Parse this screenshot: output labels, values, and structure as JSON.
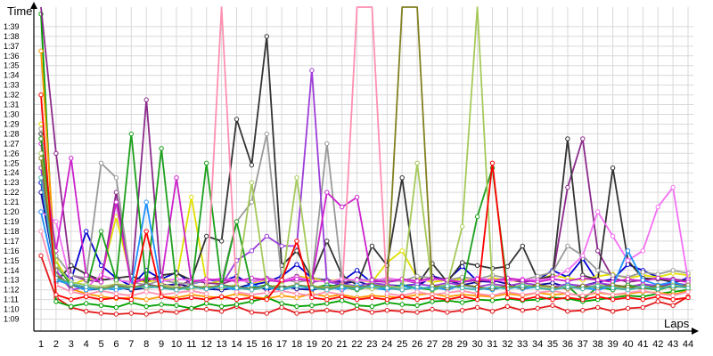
{
  "chart_data": {
    "type": "line",
    "ylabel": "Time",
    "xlabel": "Laps",
    "x_ticks": [
      "1",
      "2",
      "3",
      "4",
      "5",
      "6",
      "7",
      "8",
      "9",
      "10",
      "11",
      "12",
      "13",
      "14",
      "15",
      "16",
      "17",
      "18",
      "19",
      "20",
      "21",
      "22",
      "23",
      "24",
      "25",
      "26",
      "27",
      "28",
      "29",
      "30",
      "31",
      "32",
      "33",
      "34",
      "35",
      "36",
      "37",
      "38",
      "39",
      "40",
      "41",
      "42",
      "43",
      "44"
    ],
    "y_ticks": [
      "1:09",
      "1:10",
      "1:11",
      "1:12",
      "1:13",
      "1:14",
      "1:15",
      "1:16",
      "1:17",
      "1:18",
      "1:19",
      "1:20",
      "1:21",
      "1:22",
      "1:23",
      "1:24",
      "1:25",
      "1:26",
      "1:27",
      "1:28",
      "1:29",
      "1:30",
      "1:31",
      "1:32",
      "1:33",
      "1:34",
      "1:35",
      "1:36",
      "1:37",
      "1:38",
      "1:39"
    ],
    "ylim": [
      68.5,
      101
    ],
    "xlim": [
      1,
      44
    ],
    "grid": true,
    "series": [
      {
        "color": "#e31a1c",
        "values": [
          75.5,
          71.2,
          70.2,
          69.8,
          69.6,
          69.5,
          69.6,
          69.5,
          69.8,
          69.7,
          70.1,
          70.0,
          69.8,
          70.3,
          69.7,
          69.6,
          70.2,
          69.6,
          69.8,
          69.9,
          69.7,
          70.1,
          69.7,
          69.9,
          69.8,
          69.7,
          70.0,
          69.7,
          69.9,
          70.2,
          69.8,
          70.3,
          69.9,
          70.1,
          70.4,
          69.8,
          69.9,
          70.2,
          69.8,
          70.1,
          70.2,
          70.8,
          70.4,
          71.3
        ]
      },
      {
        "color": "#00a000",
        "values": [
          100.3,
          70.8,
          70.3,
          70.6,
          70.4,
          70.2,
          70.7,
          70.3,
          70.5,
          70.4,
          70.1,
          70.6,
          70.3,
          70.5,
          70.8,
          71.2,
          70.6,
          70.3,
          70.4,
          70.6,
          70.9,
          70.4,
          70.3,
          70.7,
          70.5,
          70.4,
          70.8,
          70.9,
          70.7,
          71.0,
          70.9,
          71.1,
          70.9,
          71.0,
          71.2,
          71.1,
          70.8,
          71.0,
          71.2,
          71.4,
          71.3,
          71.6,
          71.8,
          72.0
        ]
      },
      {
        "color": "#0000d0",
        "values": [
          83.0,
          74.5,
          73.0,
          78.0,
          74.5,
          73.2,
          72.4,
          74.0,
          73.1,
          73.8,
          72.6,
          73.0,
          72.9,
          73.4,
          72.5,
          72.8,
          73.4,
          74.6,
          73.2,
          73.0,
          72.9,
          74.0,
          72.7,
          72.5,
          72.4,
          72.6,
          73.2,
          73.0,
          74.4,
          72.9,
          72.8,
          73.1,
          72.8,
          73.0,
          74.0,
          73.3,
          75.2,
          72.8,
          73.1,
          74.6,
          74.0,
          73.3,
          72.7,
          73.2
        ]
      },
      {
        "color": "#0a0aa0",
        "values": [
          82.0,
          73.5,
          72.5,
          72.0,
          72.1,
          72.3,
          72.0,
          72.2,
          72.4,
          72.6,
          72.3,
          72.1,
          72.0,
          72.2,
          72.6,
          72.0,
          72.4,
          72.1,
          72.0,
          72.3,
          72.6,
          72.9,
          72.4,
          72.2,
          72.0,
          72.3,
          73.4,
          73.0,
          72.5,
          72.8,
          73.0,
          72.6,
          72.2,
          72.5,
          72.7,
          72.3,
          72.4,
          72.8,
          72.3,
          72.2,
          72.5,
          72.4,
          72.6,
          72.3
        ]
      },
      {
        "color": "#ff9900",
        "values": [
          96.5,
          73.6,
          72.1,
          71.6,
          71.3,
          71.1,
          71.2,
          71.0,
          71.3,
          71.2,
          71.5,
          71.3,
          71.2,
          71.6,
          71.3,
          71.1,
          71.4,
          71.2,
          71.6,
          71.3,
          71.5,
          71.2,
          71.4,
          71.3,
          71.2,
          71.5,
          71.6,
          71.3,
          71.5,
          71.4,
          71.3,
          71.6,
          71.4,
          71.7,
          71.5,
          71.6,
          71.4,
          71.7,
          71.5,
          71.6,
          71.8,
          71.7,
          71.5,
          71.9
        ]
      },
      {
        "color": "#e0e000",
        "values": [
          89.0,
          75.0,
          72.5,
          73.1,
          73.2,
          79.5,
          73.0,
          72.8,
          73.1,
          73.0,
          81.5,
          72.6,
          72.9,
          73.1,
          72.7,
          73.0,
          72.8,
          73.4,
          73.2,
          72.9,
          73.1,
          73.0,
          72.8,
          74.8,
          76.0,
          73.2,
          72.8,
          73.0,
          73.1,
          72.9,
          73.2,
          73.0,
          72.8,
          73.1,
          73.5,
          73.2,
          73.0,
          73.4,
          73.6,
          73.2,
          73.5,
          73.3,
          73.7,
          73.5
        ]
      },
      {
        "color": "#8b2a8b",
        "values": [
          101,
          86.0,
          73.5,
          73.0,
          72.8,
          82.0,
          72.4,
          91.5,
          72.6,
          72.3,
          73.0,
          72.7,
          72.6,
          73.1,
          72.8,
          73.2,
          72.9,
          73.4,
          72.8,
          73.0,
          72.7,
          73.1,
          72.9,
          72.8,
          73.0,
          72.7,
          73.2,
          72.9,
          72.8,
          73.0,
          72.9,
          73.1,
          72.8,
          73.0,
          73.3,
          82.5,
          87.5,
          76.0,
          73.2,
          72.8,
          73.0,
          73.2,
          73.1,
          72.9
        ]
      },
      {
        "color": "#333333",
        "values": [
          88.0,
          72.8,
          74.5,
          73.6,
          73.0,
          73.2,
          73.4,
          72.9,
          73.5,
          73.7,
          73.0,
          77.5,
          77.0,
          89.5,
          84.8,
          98.0,
          74.5,
          76.0,
          73.2,
          77.0,
          73.5,
          72.5,
          76.5,
          74.5,
          83.5,
          72.5,
          74.7,
          72.8,
          74.8,
          74.5,
          74.2,
          74.4,
          76.5,
          73.1,
          73.4,
          87.5,
          73.5,
          73.0,
          84.5,
          75.0,
          73.2,
          73.1,
          72.8,
          73.0
        ]
      },
      {
        "color": "#9a9a9a",
        "values": [
          88.5,
          75.5,
          73.5,
          73.2,
          85.0,
          83.5,
          72.8,
          72.5,
          73.0,
          72.7,
          72.6,
          73.1,
          72.9,
          79.0,
          81.0,
          88.0,
          73.1,
          72.8,
          73.0,
          87.0,
          73.2,
          72.8,
          73.1,
          73.0,
          72.9,
          73.4,
          73.2,
          73.0,
          73.3,
          73.1,
          73.5,
          73.2,
          73.0,
          73.4,
          73.8,
          76.5,
          75.5,
          74.0,
          73.5,
          73.3,
          73.8,
          73.6,
          74.0,
          73.7
        ]
      },
      {
        "color": "#f56ff5",
        "values": [
          80.0,
          79.0,
          72.5,
          72.2,
          73.5,
          73.0,
          72.8,
          73.2,
          72.9,
          73.1,
          73.0,
          72.9,
          73.2,
          73.0,
          72.8,
          73.1,
          72.9,
          73.3,
          73.0,
          72.8,
          73.1,
          73.0,
          72.9,
          73.2,
          73.0,
          72.8,
          73.1,
          73.0,
          72.8,
          73.2,
          73.0,
          72.9,
          73.1,
          73.0,
          73.2,
          74.0,
          75.5,
          80.0,
          77.5,
          75.0,
          76.0,
          80.5,
          82.5,
          73.0
        ]
      },
      {
        "color": "#9c3dd9",
        "values": [
          84.5,
          74.0,
          72.0,
          72.3,
          72.0,
          72.5,
          72.2,
          72.6,
          72.3,
          72.1,
          72.4,
          72.2,
          72.5,
          75.0,
          76.0,
          77.5,
          76.5,
          76.5,
          94.5,
          72.8,
          72.6,
          72.4,
          72.7,
          72.5,
          72.3,
          72.6,
          72.4,
          72.7,
          72.5,
          72.3,
          72.6,
          72.4,
          72.7,
          72.5,
          72.3,
          72.6,
          72.4,
          72.7,
          72.5,
          72.3,
          72.6,
          72.4,
          72.7,
          72.5
        ]
      },
      {
        "color": "#cc22cc",
        "values": [
          87.0,
          76.0,
          85.5,
          73.5,
          72.8,
          81.0,
          72.6,
          73.2,
          73.0,
          83.5,
          72.8,
          73.1,
          73.0,
          72.9,
          73.2,
          73.0,
          72.8,
          73.1,
          72.9,
          82.0,
          80.5,
          81.5,
          73.0,
          72.8,
          73.1,
          72.9,
          73.2,
          73.0,
          72.8,
          73.1,
          72.9,
          73.2,
          73.0,
          72.8,
          73.1,
          72.9,
          73.2,
          73.0,
          72.8,
          73.1,
          72.9,
          73.2,
          73.0,
          72.8
        ]
      },
      {
        "color": "#1ca01c",
        "values": [
          87.5,
          74.5,
          72.5,
          72.0,
          78.0,
          73.0,
          88.0,
          72.5,
          86.5,
          72.3,
          72.0,
          85.0,
          72.4,
          79.0,
          72.2,
          72.5,
          72.1,
          72.4,
          72.2,
          72.5,
          72.3,
          72.0,
          72.4,
          72.1,
          72.5,
          72.2,
          72.0,
          72.4,
          72.2,
          79.5,
          84.5,
          72.2,
          72.5,
          72.3,
          72.0,
          72.4,
          71.0,
          72.3,
          72.0,
          72.5,
          72.2,
          72.0,
          72.4,
          72.2
        ]
      },
      {
        "color": "#1e90ff",
        "values": [
          80.0,
          73.0,
          72.5,
          72.0,
          72.2,
          72.0,
          72.3,
          81.0,
          72.2,
          72.0,
          72.4,
          72.1,
          72.3,
          72.0,
          72.5,
          72.2,
          72.0,
          72.4,
          72.1,
          72.3,
          72.0,
          72.5,
          72.2,
          72.0,
          72.4,
          72.1,
          72.3,
          72.0,
          72.5,
          72.2,
          72.0,
          72.4,
          72.1,
          72.3,
          72.0,
          72.5,
          72.2,
          72.0,
          72.4,
          76.0,
          73.0,
          72.5,
          72.8,
          72.3
        ]
      },
      {
        "color": "#a6c95a",
        "values": [
          86.0,
          74.5,
          72.8,
          72.5,
          72.3,
          72.6,
          72.4,
          72.2,
          72.5,
          72.3,
          72.1,
          72.4,
          72.2,
          72.5,
          83.0,
          72.3,
          72.5,
          83.5,
          72.4,
          72.2,
          72.5,
          72.3,
          72.1,
          72.4,
          72.2,
          85.0,
          72.3,
          72.5,
          78.5,
          101,
          72.4,
          72.2,
          72.5,
          72.3,
          72.1,
          72.4,
          72.2,
          72.5,
          72.3,
          72.1,
          72.4,
          72.2,
          72.5,
          72.3
        ]
      },
      {
        "color": "#808020",
        "values": [
          85.5,
          73.5,
          72.5,
          72.3,
          72.1,
          72.4,
          72.2,
          72.5,
          72.3,
          72.1,
          72.4,
          72.2,
          72.5,
          72.3,
          72.1,
          72.4,
          72.2,
          72.5,
          72.3,
          72.1,
          72.4,
          72.2,
          72.5,
          72.3,
          101,
          101,
          72.4,
          72.2,
          72.5,
          72.3,
          72.1,
          72.4,
          72.2,
          72.5,
          72.3,
          72.1,
          72.4,
          72.2,
          72.5,
          72.3,
          72.1,
          72.4,
          72.2,
          72.5
        ]
      },
      {
        "color": "#ff8fb0",
        "values": [
          78.0,
          72.5,
          71.8,
          71.5,
          71.9,
          71.6,
          71.4,
          71.8,
          71.5,
          71.7,
          71.9,
          71.6,
          101,
          71.8,
          71.5,
          71.7,
          71.9,
          71.6,
          71.4,
          71.8,
          71.5,
          101,
          101,
          71.6,
          71.4,
          71.8,
          71.5,
          71.7,
          71.9,
          71.6,
          71.4,
          71.8,
          71.5,
          71.7,
          71.9,
          71.6,
          71.4,
          71.8,
          71.5,
          71.7,
          71.9,
          71.6,
          71.4,
          71.8
        ]
      },
      {
        "color": "#40b0b0",
        "values": [
          83.5,
          73.2,
          72.6,
          72.3,
          72.0,
          72.3,
          72.1,
          72.4,
          72.2,
          72.0,
          72.3,
          72.1,
          72.4,
          72.2,
          72.0,
          72.3,
          72.1,
          72.4,
          72.2,
          72.0,
          72.3,
          72.1,
          72.4,
          72.2,
          72.0,
          72.3,
          72.1,
          72.4,
          72.2,
          72.0,
          72.3,
          72.1,
          72.4,
          72.2,
          72.0,
          72.3,
          72.1,
          72.4,
          72.2,
          72.0,
          72.3,
          72.1,
          72.4,
          72.2
        ]
      },
      {
        "color": "#ff0000",
        "values": [
          92.0,
          71.5,
          71.0,
          71.3,
          71.0,
          71.2,
          71.0,
          78.0,
          71.3,
          71.0,
          71.2,
          71.0,
          71.3,
          71.0,
          71.2,
          71.0,
          73.0,
          77.0,
          71.2,
          71.0,
          71.3,
          71.0,
          71.2,
          71.0,
          71.3,
          71.0,
          71.2,
          71.0,
          71.3,
          71.0,
          85.0,
          71.2,
          71.0,
          71.3,
          71.0,
          71.2,
          71.0,
          71.3,
          71.0,
          71.2,
          71.0,
          71.3,
          71.0,
          71.2
        ]
      }
    ]
  }
}
